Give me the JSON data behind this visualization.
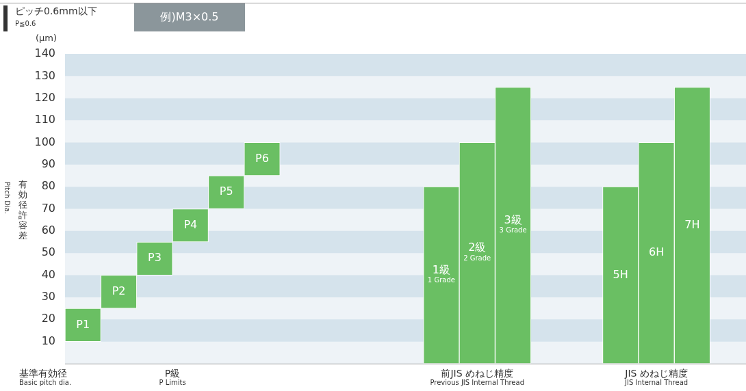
{
  "chart_data": {
    "type": "bar",
    "title": "ピッチ0.6mm以下",
    "subtitle": "P≦0.6",
    "ylabel": "有効径許容差\nPitch Dia.",
    "annotations": [
      "例)M3×0.5",
      "(μm)",
      "基準有効径\nBasic pitch dia.",
      "P級\nP Limits",
      "前JIS めねじ精度\nPrevious JIS Internal Thread",
      "JIS めねじ精度\nJIS Internal Thread"
    ],
    "categories": [
      "P1",
      "P2",
      "P3",
      "P4",
      "P5",
      "P6",
      null,
      null,
      null,
      null,
      "1級\n1 Grade",
      "2級\n2 Grade",
      "3級\n3 Grade",
      null,
      null,
      "5H",
      "6H",
      "7H",
      null
    ],
    "values": [
      15,
      15,
      15,
      15,
      15,
      15,
      null,
      null,
      null,
      null,
      80,
      100,
      125,
      null,
      null,
      80,
      100,
      125,
      null
    ],
    "base": [
      10,
      25,
      40,
      55,
      70,
      85,
      null,
      null,
      null,
      null,
      0,
      0,
      0,
      null,
      null,
      0,
      0,
      0,
      null
    ],
    "color": "#6abf63",
    "ylim": [
      0,
      140
    ],
    "yticks": [
      10,
      20,
      30,
      40,
      50,
      60,
      70,
      80,
      90,
      100,
      110,
      120,
      130,
      140
    ],
    "legend": false
  }
}
